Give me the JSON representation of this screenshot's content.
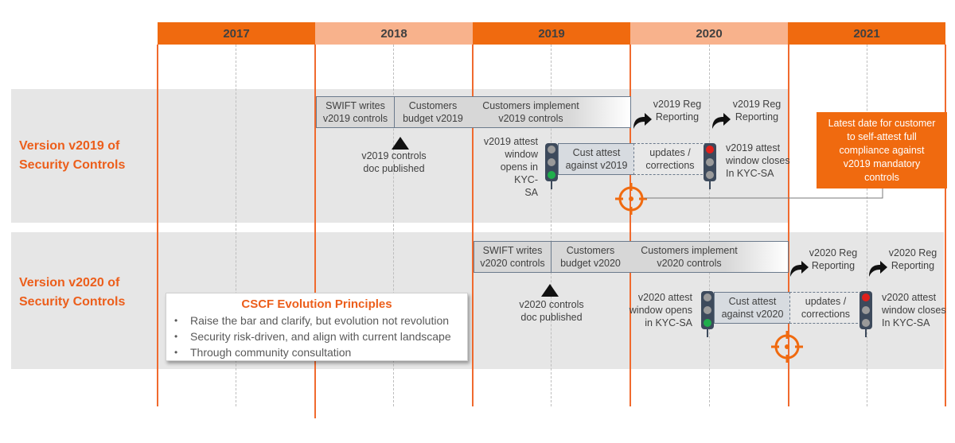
{
  "years": [
    "2017",
    "2018",
    "2019",
    "2020",
    "2021"
  ],
  "year_colors": [
    "#f06a0f",
    "#f8b28c",
    "#f06a0f",
    "#f8b28c",
    "#f06a0f"
  ],
  "accent": "#ec5e1b",
  "rows": [
    {
      "label_line1": "Version v2019 of",
      "label_line2": "Security Controls",
      "phases": [
        {
          "line1": "SWIFT writes",
          "line2": "v2019  controls"
        },
        {
          "line1": "Customers",
          "line2": "budget v2019"
        },
        {
          "line1": "Customers implement",
          "line2": "v2019  controls"
        }
      ],
      "doc_line1": "v2019  controls",
      "doc_line2": "doc published",
      "opens_lines": [
        "v2019  attest",
        "window",
        "opens in KYC-",
        "SA"
      ],
      "attest_line1": "Cust attest",
      "attest_line2": "against v2019",
      "updates_line1": "updates /",
      "updates_line2": "corrections",
      "closes_lines": [
        "v2019  attest",
        "window closes",
        "In KYC-SA"
      ],
      "reg1_line1": "v2019  Reg",
      "reg1_line2": "Reporting",
      "reg2_line1": "v2019  Reg",
      "reg2_line2": "Reporting"
    },
    {
      "label_line1": "Version v2020 of",
      "label_line2": "Security Controls",
      "phases": [
        {
          "line1": "SWIFT writes",
          "line2": "v2020  controls"
        },
        {
          "line1": "Customers",
          "line2": "budget v2020"
        },
        {
          "line1": "Customers implement",
          "line2": "v2020  controls"
        }
      ],
      "doc_line1": "v2020  controls",
      "doc_line2": "doc published",
      "opens_lines": [
        "v2020  attest",
        "window opens",
        "in KYC-SA"
      ],
      "attest_line1": "Cust attest",
      "attest_line2": "against v2020",
      "updates_line1": "updates /",
      "updates_line2": "corrections",
      "closes_lines": [
        "v2020  attest",
        "window closes",
        "In KYC-SA"
      ],
      "reg1_line1": "v2020  Reg",
      "reg1_line2": "Reporting",
      "reg2_line1": "v2020  Reg",
      "reg2_line2": "Reporting"
    }
  ],
  "deadline_lines": [
    "Latest date for customer",
    "to self-attest full",
    "compliance against",
    "v2019  mandatory",
    "controls"
  ],
  "principles": {
    "title": "CSCF Evolution Principles",
    "items": [
      "Raise the bar and clarify, but evolution not revolution",
      "Security risk-driven, and align with current landscape",
      "Through community consultation"
    ]
  }
}
